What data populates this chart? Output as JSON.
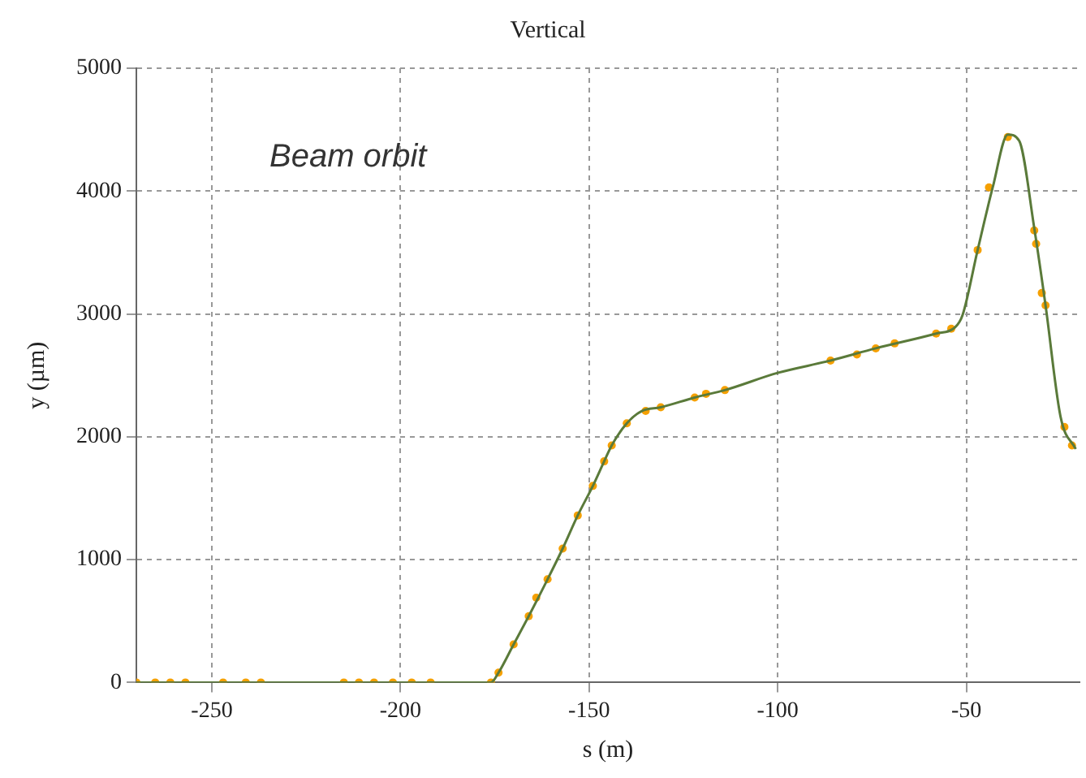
{
  "chart_data": {
    "type": "line",
    "title": "Vertical",
    "xlabel": "s (m)",
    "ylabel": "y (µm)",
    "annotations": [
      "Beam orbit"
    ],
    "xlim": [
      -270,
      -20
    ],
    "xticks": [
      -250,
      -200,
      -150,
      -100,
      -50
    ],
    "ylim": [
      0,
      5000
    ],
    "yticks": [
      0,
      1000,
      2000,
      3000,
      4000,
      5000
    ],
    "grid": true,
    "legend": false,
    "series": [
      {
        "type": "line",
        "color": "#5a7a3a",
        "marker": "none",
        "x": [
          -270,
          -176,
          -174,
          -170,
          -166,
          -161,
          -157,
          -153,
          -149,
          -146,
          -144,
          -140,
          -136,
          -131,
          -122,
          -114,
          -100,
          -86,
          -74,
          -58,
          -53,
          -51,
          -47,
          -43,
          -39,
          -36,
          -32,
          -29,
          -25,
          -21
        ],
        "values": [
          0,
          0,
          80,
          310,
          540,
          840,
          1090,
          1360,
          1600,
          1800,
          1930,
          2110,
          2210,
          2240,
          2320,
          2380,
          2520,
          2620,
          2720,
          2840,
          2890,
          2990,
          3520,
          4030,
          4460,
          4410,
          3700,
          3070,
          2160,
          1900
        ]
      },
      {
        "type": "scatter",
        "color": "#f5a000",
        "marker": "circle",
        "x": [
          -270,
          -265,
          -261,
          -257,
          -247,
          -241,
          -237,
          -215,
          -211,
          -207,
          -202,
          -197,
          -192,
          -176,
          -174,
          -170,
          -166,
          -164,
          -161,
          -157,
          -153,
          -149,
          -146,
          -144,
          -140,
          -135,
          -131,
          -122,
          -119,
          -114,
          -86,
          -79,
          -74,
          -69,
          -58,
          -54,
          -47,
          -44,
          -39,
          -32,
          -31.5,
          -30,
          -29,
          -24,
          -22
        ],
        "values": [
          0,
          0,
          0,
          0,
          0,
          0,
          0,
          0,
          0,
          0,
          0,
          0,
          0,
          0,
          80,
          310,
          540,
          690,
          840,
          1090,
          1360,
          1600,
          1800,
          1930,
          2110,
          2210,
          2240,
          2320,
          2350,
          2380,
          2620,
          2670,
          2720,
          2760,
          2840,
          2880,
          3520,
          4030,
          4440,
          3680,
          3570,
          3170,
          3070,
          2080,
          1930
        ]
      }
    ]
  }
}
